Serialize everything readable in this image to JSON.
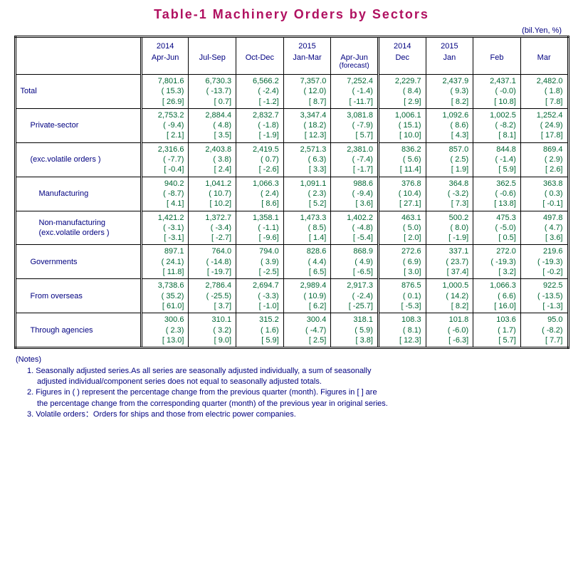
{
  "title": "Table-1  Machinery  Orders  by  Sectors",
  "unit": "(bil.Yen, %)",
  "headers": {
    "r1": [
      "2014",
      "",
      "",
      "2015",
      "",
      "2014",
      "2015",
      "",
      ""
    ],
    "r2": [
      "Apr-Jun",
      "Jul-Sep",
      "Oct-Dec",
      "Jan-Mar",
      "Apr-Jun",
      "Dec",
      "Jan",
      "Feb",
      "Mar"
    ],
    "r2extra": [
      "",
      "",
      "",
      "",
      "(forecast)",
      "",
      "",
      "",
      ""
    ]
  },
  "rows": [
    {
      "label": "Total",
      "indent": 0,
      "d": [
        [
          "7,801.6",
          "( 15.3)",
          "[ 26.9]"
        ],
        [
          "6,730.3",
          "( -13.7)",
          "[ 0.7]"
        ],
        [
          "6,566.2",
          "( -2.4)",
          "[ -1.2]"
        ],
        [
          "7,357.0",
          "( 12.0)",
          "[ 8.7]"
        ],
        [
          "7,252.4",
          "( -1.4)",
          "[ -11.7]"
        ],
        [
          "2,229.7",
          "( 8.4)",
          "[ 2.9]"
        ],
        [
          "2,437.9",
          "( 9.3)",
          "[ 8.2]"
        ],
        [
          "2,437.1",
          "( -0.0)",
          "[ 10.8]"
        ],
        [
          "2,482.0",
          "( 1.8)",
          "[ 7.8]"
        ]
      ]
    },
    {
      "label": "Private-sector",
      "indent": 1,
      "d": [
        [
          "2,753.2",
          "( -9.4)",
          "[ 2.1]"
        ],
        [
          "2,884.4",
          "( 4.8)",
          "[ 3.5]"
        ],
        [
          "2,832.7",
          "( -1.8)",
          "[ -1.9]"
        ],
        [
          "3,347.4",
          "(  18.2)",
          "[ 12.3]"
        ],
        [
          "3,081.8",
          "( -7.9)",
          "[ 5.7]"
        ],
        [
          "1,006.1",
          "(  15.1)",
          "[ 10.0]"
        ],
        [
          "1,092.6",
          "( 8.6)",
          "[ 4.3]"
        ],
        [
          "1,002.5",
          "( -8.2)",
          "[ 8.1]"
        ],
        [
          "1,252.4",
          "( 24.9)",
          "[ 17.8]"
        ]
      ]
    },
    {
      "label": "(exc.volatile orders )",
      "indent": 1,
      "d": [
        [
          "2,316.6",
          "( -7.7)",
          "[ -0.4]"
        ],
        [
          "2,403.8",
          "( 3.8)",
          "[ 2.4]"
        ],
        [
          "2,419.5",
          "( 0.7)",
          "[ -2.6]"
        ],
        [
          "2,571.3",
          "( 6.3)",
          "[ 3.3]"
        ],
        [
          "2,381.0",
          "( -7.4)",
          "[ -1.7]"
        ],
        [
          "836.2",
          "( 5.6)",
          "[ 11.4]"
        ],
        [
          "857.0",
          "( 2.5)",
          "[ 1.9]"
        ],
        [
          "844.8",
          "( -1.4)",
          "[ 5.9]"
        ],
        [
          "869.4",
          "( 2.9)",
          "[ 2.6]"
        ]
      ]
    },
    {
      "label": "Manufacturing",
      "indent": 2,
      "d": [
        [
          "940.2",
          "( -8.7)",
          "[ 4.1]"
        ],
        [
          "1,041.2",
          "( 10.7)",
          "[ 10.2]"
        ],
        [
          "1,066.3",
          "( 2.4)",
          "[ 8.6]"
        ],
        [
          "1,091.1",
          "( 2.3)",
          "[ 5.2]"
        ],
        [
          "988.6",
          "( -9.4)",
          "[ 3.6]"
        ],
        [
          "376.8",
          "( 10.4)",
          "[ 27.1]"
        ],
        [
          "364.8",
          "( -3.2)",
          "[ 7.3]"
        ],
        [
          "362.5",
          "( -0.6)",
          "[ 13.8]"
        ],
        [
          "363.8",
          "( 0.3)",
          "[ -0.1]"
        ]
      ]
    },
    {
      "label": "Non-manufacturing<br>(exc.volatile orders )",
      "indent": 2,
      "d": [
        [
          "1,421.2",
          "( -3.1)",
          "[ -3.1]"
        ],
        [
          "1,372.7",
          "( -3.4)",
          "[ -2.7]"
        ],
        [
          "1,358.1",
          "( -1.1)",
          "[ -9.6]"
        ],
        [
          "1,473.3",
          "( 8.5)",
          "[ 1.4]"
        ],
        [
          "1,402.2",
          "( -4.8)",
          "[ -5.4]"
        ],
        [
          "463.1",
          "( 5.0)",
          "[ 2.0]"
        ],
        [
          "500.2",
          "( 8.0)",
          "[ -1.9]"
        ],
        [
          "475.3",
          "( -5.0)",
          "[ 0.5]"
        ],
        [
          "497.8",
          "( 4.7)",
          "[ 3.6]"
        ]
      ]
    },
    {
      "label": "Governments",
      "indent": 1,
      "d": [
        [
          "897.1",
          "( 24.1)",
          "[ 11.8]"
        ],
        [
          "764.0",
          "( -14.8)",
          "[ -19.7]"
        ],
        [
          "794.0",
          "( 3.9)",
          "[ -2.5]"
        ],
        [
          "828.6",
          "( 4.4)",
          "[ 6.5]"
        ],
        [
          "868.9",
          "( 4.9)",
          "[ -6.5]"
        ],
        [
          "272.6",
          "( 6.9)",
          "[ 3.0]"
        ],
        [
          "337.1",
          "( 23.7)",
          "[ 37.4]"
        ],
        [
          "272.0",
          "( -19.3)",
          "[ 3.2]"
        ],
        [
          "219.6",
          "( -19.3)",
          "[ -0.2]"
        ]
      ]
    },
    {
      "label": "From overseas",
      "indent": 1,
      "d": [
        [
          "3,738.6",
          "( 35.2)",
          "[ 61.0]"
        ],
        [
          "2,786.4",
          "( -25.5)",
          "[ 3.7]"
        ],
        [
          "2,694.7",
          "( -3.3)",
          "[ -1.0]"
        ],
        [
          "2,989.4",
          "( 10.9)",
          "[ 6.2]"
        ],
        [
          "2,917.3",
          "( -2.4)",
          "[ -25.7]"
        ],
        [
          "876.5",
          "( 0.1)",
          "[ -5.3]"
        ],
        [
          "1,000.5",
          "( 14.2)",
          "[ 8.2]"
        ],
        [
          "1,066.3",
          "( 6.6)",
          "[ 16.0]"
        ],
        [
          "922.5",
          "( -13.5)",
          "[ -1.3]"
        ]
      ]
    },
    {
      "label": "Through agencies",
      "indent": 1,
      "d": [
        [
          "300.6",
          "( 2.3)",
          "[ 13.0]"
        ],
        [
          "310.1",
          "( 3.2)",
          "[ 9.0]"
        ],
        [
          "315.2",
          "( 1.6)",
          "[ 5.9]"
        ],
        [
          "300.4",
          "( -4.7)",
          "[ 2.5]"
        ],
        [
          "318.1",
          "( 5.9)",
          "[ 3.8]"
        ],
        [
          "108.3",
          "( 8.1)",
          "[ 12.3]"
        ],
        [
          "101.8",
          "( -6.0)",
          "[ -6.3]"
        ],
        [
          "103.6",
          "( 1.7)",
          "[ 5.7]"
        ],
        [
          "95.0",
          "( -8.2)",
          "[ 7.7]"
        ]
      ]
    }
  ],
  "notes": {
    "head": "(Notes)",
    "items": [
      [
        "1. Seasonally adjusted series.As all series are seasonally adjusted individually, a sum of seasonally",
        "adjusted individual/component series does not equal to seasonally adjusted totals."
      ],
      [
        "2. Figures in ( ) represent the percentage change from the previous quarter (month). Figures in [ ] are",
        "the percentage change from the corresponding quarter (month) of the previous year in original series."
      ],
      [
        "3. Volatile orders：Orders for ships and those from electric power companies."
      ]
    ]
  }
}
